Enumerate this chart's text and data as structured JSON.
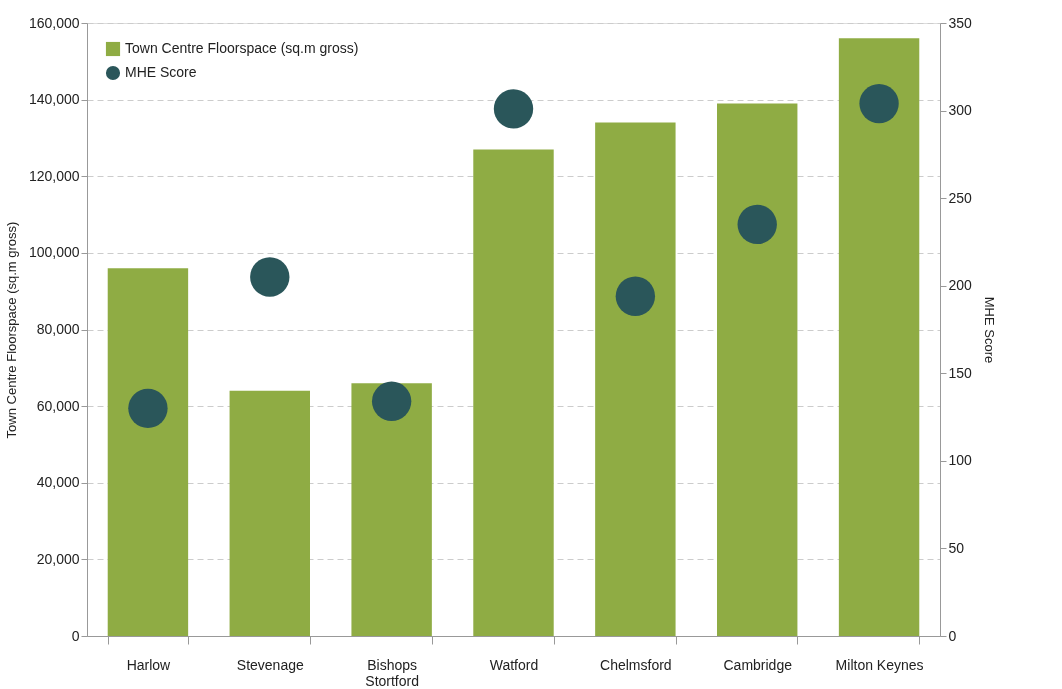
{
  "chart_data": {
    "type": "bar",
    "categories": [
      "Harlow",
      "Stevenage",
      "Bishops Stortford",
      "Watford",
      "Chelmsford",
      "Cambridge",
      "Milton Keynes"
    ],
    "ylabel": "Town Centre Floorspace (sq.m gross)",
    "y2label": "MHE Score",
    "series": [
      {
        "name": "Town Centre Floorspace (sq.m gross)",
        "color": "#8fac44",
        "values": [
          96000,
          64000,
          66000,
          127000,
          134000,
          139000,
          156000
        ]
      },
      {
        "name": "MHE Score",
        "type": "scatter",
        "axis": "y2",
        "color": "#2a565a",
        "values": [
          130,
          205,
          134,
          301,
          194,
          235,
          304
        ]
      }
    ],
    "ylim": [
      0,
      160000
    ],
    "yticks": [
      0,
      {
        "value": 20000,
        "label": "20,000"
      },
      {
        "value": 40000,
        "label": "40,000"
      },
      {
        "value": 60000,
        "label": "60,000"
      },
      {
        "value": 80000,
        "label": "80,000"
      },
      {
        "value": 100000,
        "label": "100,000"
      },
      {
        "value": 120000,
        "label": "120,000"
      },
      {
        "value": 140000,
        "label": "140,000"
      },
      {
        "value": 160000,
        "label": "160,000"
      }
    ],
    "y2lim": [
      0,
      350
    ],
    "y2ticks": [
      0,
      50,
      100,
      150,
      200,
      250,
      300,
      350
    ],
    "grid": "y",
    "legend": "top left",
    "marker": "circle"
  }
}
